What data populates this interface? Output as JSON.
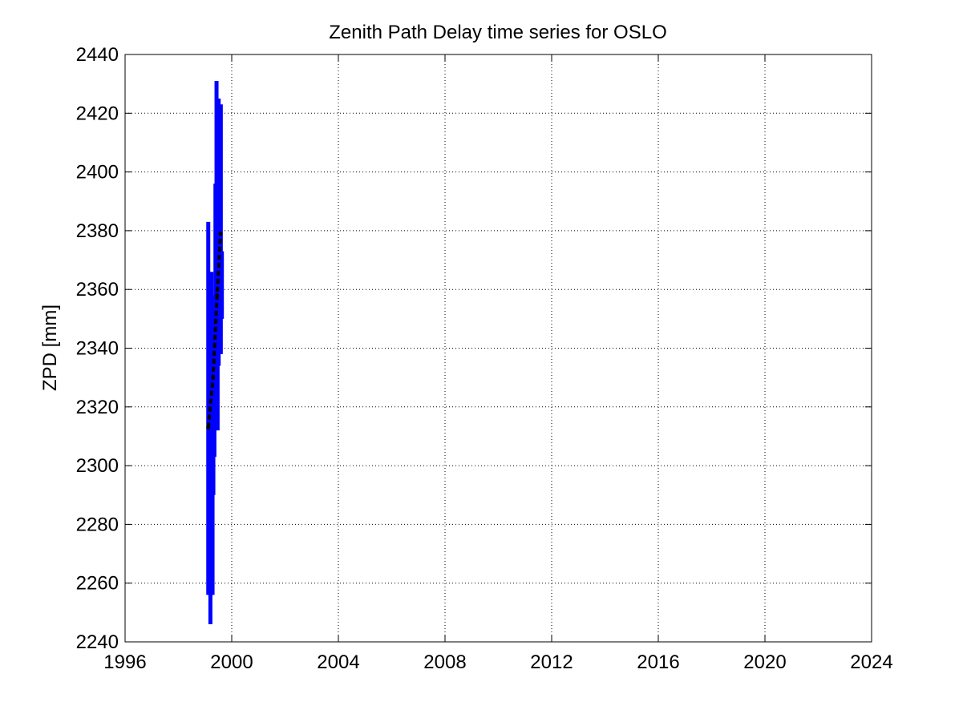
{
  "chart_data": {
    "type": "line",
    "title": "Zenith Path Delay time series for OSLO",
    "xlabel": "",
    "ylabel": "ZPD [mm]",
    "xlim": [
      1996,
      2024
    ],
    "ylim": [
      2240,
      2440
    ],
    "xticks": [
      1996,
      2000,
      2004,
      2008,
      2012,
      2016,
      2020,
      2024
    ],
    "yticks": [
      2240,
      2260,
      2280,
      2300,
      2320,
      2340,
      2360,
      2380,
      2400,
      2420,
      2440
    ],
    "grid": true,
    "series": [
      {
        "style": "blue-vertical-segments",
        "color": "#0000ff",
        "segments": [
          {
            "x": 1999.12,
            "ymin": 2256,
            "ymax": 2383
          },
          {
            "x": 1999.16,
            "ymin": 2270,
            "ymax": 2340
          },
          {
            "x": 1999.2,
            "ymin": 2246,
            "ymax": 2315
          },
          {
            "x": 1999.24,
            "ymin": 2262,
            "ymax": 2366
          },
          {
            "x": 1999.28,
            "ymin": 2256,
            "ymax": 2310
          },
          {
            "x": 1999.31,
            "ymin": 2290,
            "ymax": 2352
          },
          {
            "x": 1999.35,
            "ymin": 2303,
            "ymax": 2358
          },
          {
            "x": 1999.39,
            "ymin": 2320,
            "ymax": 2396
          },
          {
            "x": 1999.43,
            "ymin": 2330,
            "ymax": 2431
          },
          {
            "x": 1999.47,
            "ymin": 2312,
            "ymax": 2380
          },
          {
            "x": 1999.51,
            "ymin": 2334,
            "ymax": 2425
          },
          {
            "x": 1999.55,
            "ymin": 2340,
            "ymax": 2400
          },
          {
            "x": 1999.59,
            "ymin": 2338,
            "ymax": 2423
          },
          {
            "x": 1999.63,
            "ymin": 2350,
            "ymax": 2373
          }
        ]
      },
      {
        "style": "black-dashed-trend",
        "color": "#000000",
        "points": [
          {
            "x": 1999.12,
            "y": 2313
          },
          {
            "x": 1999.3,
            "y": 2330
          },
          {
            "x": 1999.45,
            "y": 2358
          },
          {
            "x": 1999.58,
            "y": 2379
          }
        ]
      }
    ]
  }
}
